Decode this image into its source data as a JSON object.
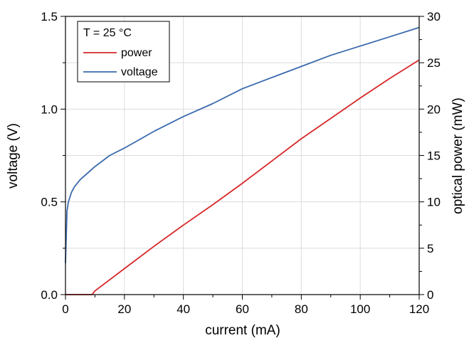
{
  "chart_data": {
    "type": "line",
    "xlabel": "current (mA)",
    "ylabel": "voltage (V)",
    "y2label": "optical power (mW)",
    "xlim": [
      0,
      120
    ],
    "ylim": [
      0,
      1.5
    ],
    "y2lim": [
      0,
      30
    ],
    "x_ticks": [
      "0",
      "20",
      "40",
      "60",
      "80",
      "100",
      "120"
    ],
    "y_ticks": [
      "0.0",
      "0.5",
      "1.0",
      "1.5"
    ],
    "y2_ticks": [
      "0",
      "5",
      "10",
      "15",
      "20",
      "25",
      "30"
    ],
    "grid": true,
    "legend": {
      "title": "T = 25 °C",
      "position": "top-left",
      "entries": [
        "power",
        "voltage"
      ]
    },
    "series": [
      {
        "name": "power",
        "axis": "right",
        "color": "#d62728",
        "x": [
          0,
          8,
          9,
          10,
          20,
          30,
          40,
          50,
          60,
          70,
          80,
          90,
          100,
          110,
          120
        ],
        "y": [
          0,
          0,
          0,
          0.4,
          2.8,
          5.2,
          7.5,
          9.7,
          12.0,
          14.4,
          16.8,
          19.0,
          21.2,
          23.3,
          25.3
        ]
      },
      {
        "name": "voltage",
        "axis": "left",
        "color": "#3a6aad",
        "x": [
          0,
          0.5,
          1,
          2,
          3,
          5,
          10,
          15,
          20,
          30,
          40,
          50,
          60,
          70,
          80,
          90,
          100,
          110,
          120
        ],
        "y": [
          0.17,
          0.45,
          0.5,
          0.55,
          0.58,
          0.62,
          0.69,
          0.75,
          0.79,
          0.88,
          0.96,
          1.03,
          1.11,
          1.17,
          1.23,
          1.29,
          1.34,
          1.39,
          1.44
        ]
      }
    ]
  }
}
